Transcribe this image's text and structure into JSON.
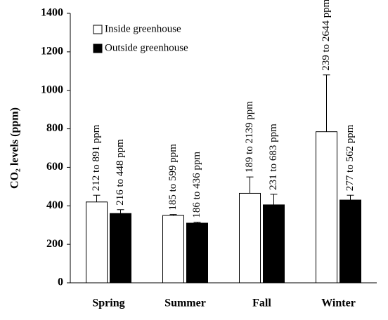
{
  "chart_data": {
    "type": "bar",
    "y_label": "CO₂ levels (ppm)",
    "categories": [
      "Spring",
      "Summer",
      "Fall",
      "Winter"
    ],
    "series": [
      {
        "name": "Inside greenhouse",
        "color": "#ffffff",
        "values": [
          420,
          350,
          465,
          785
        ],
        "errors": [
          35,
          5,
          85,
          295
        ],
        "annotations": [
          "212 to 891 ppm",
          "185 to 599 ppm",
          "189 to 2139 ppm",
          "239 to 2644 ppm"
        ]
      },
      {
        "name": "Outside greenhouse",
        "color": "#000000",
        "values": [
          360,
          310,
          405,
          430
        ],
        "errors": [
          20,
          5,
          55,
          25
        ],
        "annotations": [
          "216 to 448 ppm",
          "186 to 436 ppm",
          "231 to 683 ppm",
          "277 to 562 ppm"
        ]
      }
    ],
    "ylim": [
      0,
      1400
    ],
    "yticks": [
      0,
      200,
      400,
      600,
      800,
      1000,
      1200,
      1400
    ],
    "legend": "upper left"
  }
}
